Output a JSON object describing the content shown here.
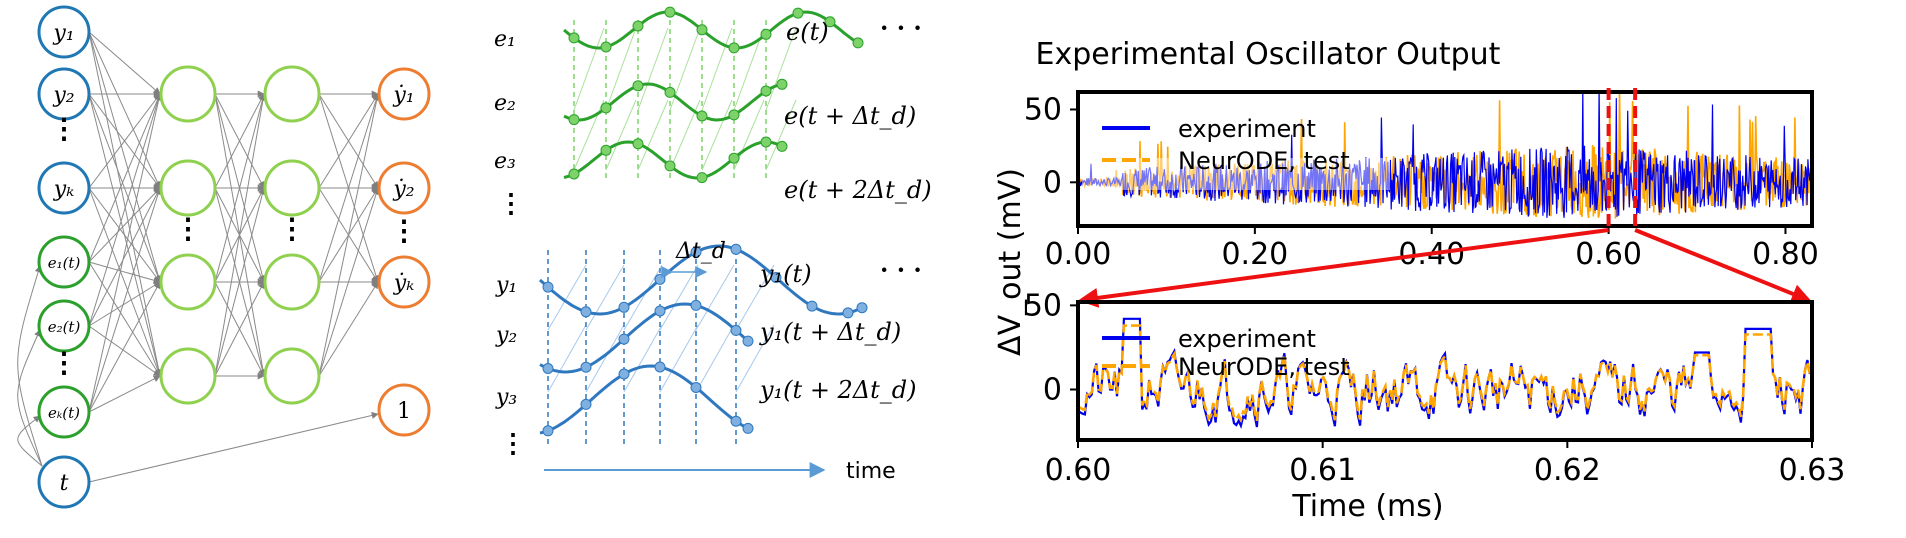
{
  "colors": {
    "input_blue": "#1f77b4",
    "input_green": "#2ca02c",
    "hidden_green": "#8fd14f",
    "output_orange": "#ed7d31",
    "experiment": "#0000ee",
    "neurode": "#ffa500",
    "zoom_red": "#ee1111",
    "green_series": "#2aa12a",
    "blue_series": "#2f78c0"
  },
  "network": {
    "inputs": {
      "y1": "y₁",
      "y2": "y₂",
      "dots1": "⋮",
      "yk": "yₖ",
      "e1": "e₁(t)",
      "e2": "e₂(t)",
      "dots2": "⋮",
      "ek": "eₖ(t)",
      "t": "t"
    },
    "hidden_dots": "⋮",
    "outputs": {
      "o1": "ẏ₁",
      "o2": "ẏ₂",
      "dots": "⋮",
      "ok": "ẏₖ",
      "one": "1"
    }
  },
  "delay_embed": {
    "green_rows": [
      "e₁",
      "e₂",
      "e₃"
    ],
    "green_labels": [
      "e(t)",
      "e(t + Δt_d)",
      "e(t + 2Δt_d)"
    ],
    "green_ellipsis": "· · ·",
    "vdots": "⋮",
    "delta": "Δt_d",
    "blue_rows": [
      "y₁",
      "y₂",
      "y₃"
    ],
    "blue_labels": [
      "y₁(t)",
      "y₁(t + Δt_d)",
      "y₁(t + 2Δt_d)"
    ],
    "blue_ellipsis": "· · ·",
    "time_label": "time"
  },
  "chart_data": [
    {
      "type": "line",
      "title": "Experimental Oscillator Output",
      "xlabel": "",
      "ylabel": "ΔV_out (mV)",
      "xlim": [
        0.0,
        0.83
      ],
      "ylim": [
        -30,
        62
      ],
      "xticks": [
        "0.00",
        "0.20",
        "0.40",
        "0.60",
        "0.80"
      ],
      "yticks": [
        "50",
        "0"
      ],
      "legend": {
        "position": "top-left",
        "entries": [
          "experiment",
          "NeurODE, test"
        ]
      },
      "zoom_window": [
        0.6,
        0.63
      ],
      "series": [
        {
          "name": "experiment",
          "color": "#0000ee"
        },
        {
          "name": "NeurODE, test",
          "color": "#ffa500"
        }
      ]
    },
    {
      "type": "line",
      "title": "",
      "xlabel": "Time (ms)",
      "ylabel": "ΔV_out (mV)",
      "xlim": [
        0.6,
        0.63
      ],
      "ylim": [
        -30,
        52
      ],
      "xticks": [
        "0.60",
        "0.61",
        "0.62",
        "0.63"
      ],
      "yticks": [
        "50",
        "0"
      ],
      "legend": {
        "position": "top-left",
        "entries": [
          "experiment",
          "NeurODE, test"
        ]
      },
      "series": [
        {
          "name": "experiment",
          "color": "#0000ee"
        },
        {
          "name": "NeurODE, test",
          "color": "#ffa500"
        }
      ]
    }
  ]
}
